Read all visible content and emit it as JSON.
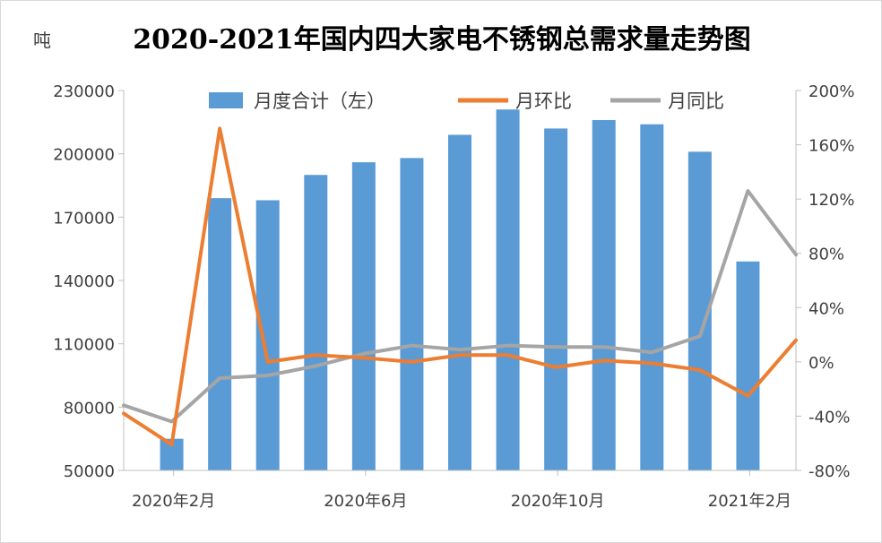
{
  "chart_data": {
    "type": "bar",
    "title": "2020-2021年国内四大家电不锈钢总需求量走势图",
    "y_unit": "吨",
    "left_axis": {
      "ticks": [
        "230000",
        "200000",
        "170000",
        "140000",
        "110000",
        "80000",
        "50000"
      ],
      "ylim": [
        50000,
        230000
      ]
    },
    "right_axis": {
      "ticks": [
        "200%",
        "160%",
        "120%",
        "80%",
        "40%",
        "0%",
        "-40%",
        "-80%"
      ],
      "ylim": [
        -0.8,
        2.0
      ]
    },
    "x_tick_labels": [
      "2020年2月",
      "2020年6月",
      "2020年10月",
      "2021年2月"
    ],
    "categories": [
      "2020-01",
      "2020-02",
      "2020-03",
      "2020-04",
      "2020-05",
      "2020-06",
      "2020-07",
      "2020-08",
      "2020-09",
      "2020-10",
      "2020-11",
      "2020-12",
      "2021-01",
      "2021-02",
      "2021-03"
    ],
    "legend": {
      "placement": "top"
    },
    "series": [
      {
        "name": "月度合计（左）",
        "type": "bar",
        "axis": "left",
        "color": "#5b9bd5",
        "values": [
          null,
          65000,
          179000,
          178000,
          190000,
          196000,
          198000,
          209000,
          221000,
          212000,
          216000,
          214000,
          201000,
          149000,
          null
        ]
      },
      {
        "name": "月环比",
        "type": "line",
        "axis": "right",
        "color": "#ed7d31",
        "values": [
          -0.38,
          -0.61,
          1.72,
          0.0,
          0.05,
          0.03,
          0.0,
          0.05,
          0.05,
          -0.04,
          0.01,
          -0.01,
          -0.06,
          -0.25,
          0.16
        ]
      },
      {
        "name": "月同比",
        "type": "line",
        "axis": "right",
        "color": "#a5a5a5",
        "values": [
          -0.32,
          -0.44,
          -0.12,
          -0.1,
          -0.03,
          0.06,
          0.12,
          0.09,
          0.12,
          0.11,
          0.11,
          0.07,
          0.19,
          1.26,
          0.79
        ]
      }
    ],
    "grid": false
  }
}
